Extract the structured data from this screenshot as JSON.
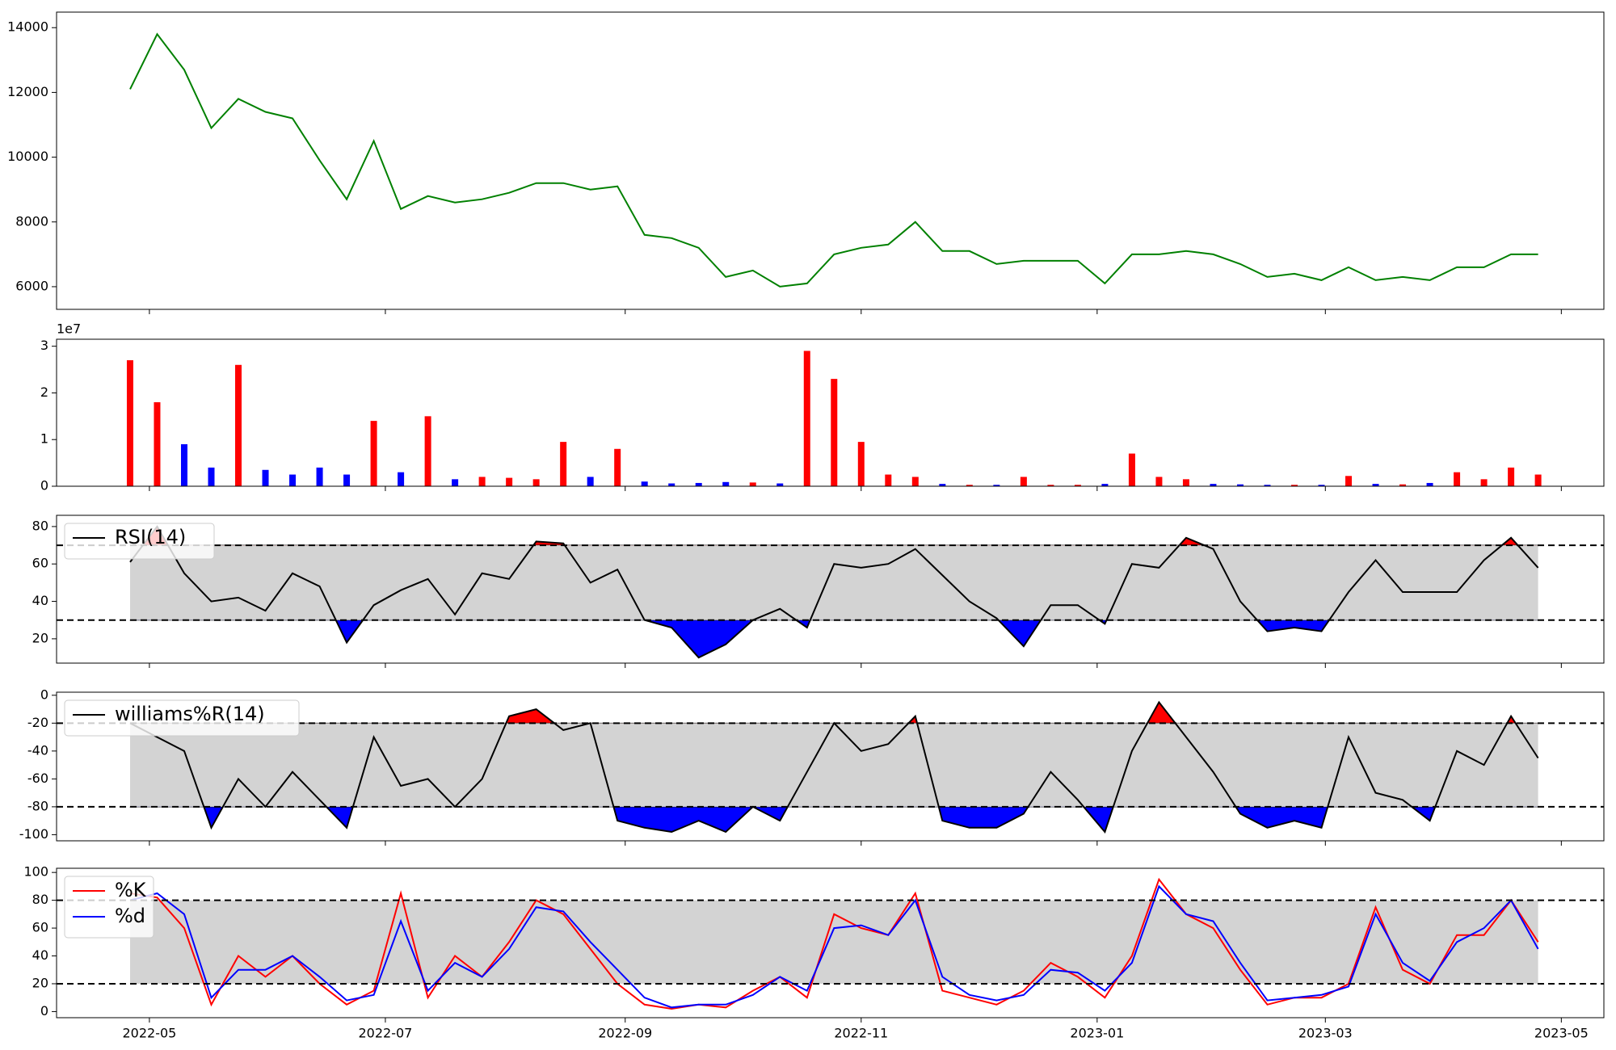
{
  "chart_data": [
    {
      "type": "line",
      "xlim": [
        "2022-04-07",
        "2023-05-12"
      ],
      "x": [
        "2022-04-26",
        "2022-05-03",
        "2022-05-10",
        "2022-05-17",
        "2022-05-24",
        "2022-05-31",
        "2022-06-07",
        "2022-06-14",
        "2022-06-21",
        "2022-06-28",
        "2022-07-05",
        "2022-07-12",
        "2022-07-19",
        "2022-07-26",
        "2022-08-02",
        "2022-08-09",
        "2022-08-16",
        "2022-08-23",
        "2022-08-30",
        "2022-09-06",
        "2022-09-13",
        "2022-09-20",
        "2022-09-27",
        "2022-10-04",
        "2022-10-11",
        "2022-10-18",
        "2022-10-25",
        "2022-11-01",
        "2022-11-08",
        "2022-11-15",
        "2022-11-22",
        "2022-11-29",
        "2022-12-06",
        "2022-12-13",
        "2022-12-20",
        "2022-12-27",
        "2023-01-03",
        "2023-01-10",
        "2023-01-17",
        "2023-01-24",
        "2023-01-31",
        "2023-02-07",
        "2023-02-14",
        "2023-02-21",
        "2023-02-28",
        "2023-03-07",
        "2023-03-14",
        "2023-03-21",
        "2023-03-28",
        "2023-04-04",
        "2023-04-11",
        "2023-04-18",
        "2023-04-25"
      ],
      "series": [
        {
          "color": "green",
          "values": [
            12100,
            13800,
            12700,
            10900,
            11800,
            11400,
            11200,
            9900,
            8700,
            10500,
            8400,
            8800,
            8600,
            8700,
            8900,
            9200,
            9200,
            9000,
            9100,
            7600,
            7500,
            7200,
            6300,
            6500,
            6000,
            6100,
            7000,
            7200,
            7300,
            8000,
            7100,
            7100,
            6700,
            6800,
            6800,
            6800,
            6100,
            7000,
            7000,
            7100,
            7000,
            6700,
            6300,
            6400,
            6200,
            6600,
            6200,
            6300,
            6200,
            6600,
            6600,
            7000,
            7000
          ]
        }
      ],
      "ylim": [
        5300,
        14480
      ],
      "yticks": [
        6000,
        8000,
        10000,
        12000,
        14000
      ]
    },
    {
      "type": "bar",
      "xlim": [
        "2022-04-07",
        "2023-05-12"
      ],
      "up_color": "red",
      "down_color": "blue",
      "x": [
        "2022-04-26",
        "2022-05-03",
        "2022-05-10",
        "2022-05-17",
        "2022-05-24",
        "2022-05-31",
        "2022-06-07",
        "2022-06-14",
        "2022-06-21",
        "2022-06-28",
        "2022-07-05",
        "2022-07-12",
        "2022-07-19",
        "2022-07-26",
        "2022-08-02",
        "2022-08-09",
        "2022-08-16",
        "2022-08-23",
        "2022-08-30",
        "2022-09-06",
        "2022-09-13",
        "2022-09-20",
        "2022-09-27",
        "2022-10-04",
        "2022-10-11",
        "2022-10-18",
        "2022-10-25",
        "2022-11-01",
        "2022-11-08",
        "2022-11-15",
        "2022-11-22",
        "2022-11-29",
        "2022-12-06",
        "2022-12-13",
        "2022-12-20",
        "2022-12-27",
        "2023-01-03",
        "2023-01-10",
        "2023-01-17",
        "2023-01-24",
        "2023-01-31",
        "2023-02-07",
        "2023-02-14",
        "2023-02-21",
        "2023-02-28",
        "2023-03-07",
        "2023-03-14",
        "2023-03-21",
        "2023-03-28",
        "2023-04-04",
        "2023-04-11",
        "2023-04-18",
        "2023-04-25"
      ],
      "values": [
        27000000,
        18000000,
        9000000,
        4000000,
        26000000,
        3500000,
        2500000,
        4000000,
        2500000,
        14000000,
        3000000,
        15000000,
        1500000,
        2000000,
        1800000,
        1500000,
        9500000,
        2000000,
        8000000,
        1000000,
        600000,
        700000,
        900000,
        800000,
        600000,
        29000000,
        23000000,
        9500000,
        2500000,
        2000000,
        500000,
        300000,
        300000,
        2000000,
        300000,
        300000,
        500000,
        7000000,
        2000000,
        1500000,
        500000,
        400000,
        300000,
        300000,
        300000,
        2200000,
        500000,
        400000,
        700000,
        3000000,
        1500000,
        4000000,
        2500000
      ],
      "ylim": [
        0,
        31500000
      ],
      "y_offset_label": "1e7",
      "yticks": [
        0,
        {
          "value": 10000000,
          "label": "1"
        },
        {
          "value": 20000000,
          "label": "2"
        },
        {
          "value": 30000000,
          "label": "3"
        }
      ]
    },
    {
      "type": "line",
      "xlim": [
        "2022-04-07",
        "2023-05-12"
      ],
      "thresholds": [
        30,
        70
      ],
      "band_color": "#d3d3d3",
      "upper_fill": "red",
      "lower_fill": "blue",
      "legend": "upper left",
      "x": [
        "2022-04-26",
        "2022-05-03",
        "2022-05-10",
        "2022-05-17",
        "2022-05-24",
        "2022-05-31",
        "2022-06-07",
        "2022-06-14",
        "2022-06-21",
        "2022-06-28",
        "2022-07-05",
        "2022-07-12",
        "2022-07-19",
        "2022-07-26",
        "2022-08-02",
        "2022-08-09",
        "2022-08-16",
        "2022-08-23",
        "2022-08-30",
        "2022-09-06",
        "2022-09-13",
        "2022-09-20",
        "2022-09-27",
        "2022-10-04",
        "2022-10-11",
        "2022-10-18",
        "2022-10-25",
        "2022-11-01",
        "2022-11-08",
        "2022-11-15",
        "2022-11-22",
        "2022-11-29",
        "2022-12-06",
        "2022-12-13",
        "2022-12-20",
        "2022-12-27",
        "2023-01-03",
        "2023-01-10",
        "2023-01-17",
        "2023-01-24",
        "2023-01-31",
        "2023-02-07",
        "2023-02-14",
        "2023-02-21",
        "2023-02-28",
        "2023-03-07",
        "2023-03-14",
        "2023-03-21",
        "2023-03-28",
        "2023-04-04",
        "2023-04-11",
        "2023-04-18",
        "2023-04-25"
      ],
      "series": [
        {
          "name": "RSI(14)",
          "color": "black",
          "values": [
            61,
            80,
            55,
            40,
            42,
            35,
            55,
            48,
            18,
            38,
            46,
            52,
            33,
            55,
            52,
            72,
            71,
            50,
            57,
            30,
            26,
            10,
            17,
            30,
            36,
            26,
            60,
            58,
            60,
            68,
            54,
            40,
            31,
            16,
            38,
            38,
            28,
            60,
            58,
            74,
            68,
            40,
            24,
            26,
            24,
            45,
            62,
            45,
            45,
            45,
            62,
            74,
            58
          ]
        }
      ],
      "ylim": [
        7,
        86
      ],
      "yticks": [
        20,
        40,
        60,
        80
      ]
    },
    {
      "type": "line",
      "xlim": [
        "2022-04-07",
        "2023-05-12"
      ],
      "thresholds": [
        -80,
        -20
      ],
      "band_color": "#d3d3d3",
      "upper_fill": "red",
      "lower_fill": "blue",
      "legend": "upper left",
      "x": [
        "2022-04-26",
        "2022-05-03",
        "2022-05-10",
        "2022-05-17",
        "2022-05-24",
        "2022-05-31",
        "2022-06-07",
        "2022-06-14",
        "2022-06-21",
        "2022-06-28",
        "2022-07-05",
        "2022-07-12",
        "2022-07-19",
        "2022-07-26",
        "2022-08-02",
        "2022-08-09",
        "2022-08-16",
        "2022-08-23",
        "2022-08-30",
        "2022-09-06",
        "2022-09-13",
        "2022-09-20",
        "2022-09-27",
        "2022-10-04",
        "2022-10-11",
        "2022-10-18",
        "2022-10-25",
        "2022-11-01",
        "2022-11-08",
        "2022-11-15",
        "2022-11-22",
        "2022-11-29",
        "2022-12-06",
        "2022-12-13",
        "2022-12-20",
        "2022-12-27",
        "2023-01-03",
        "2023-01-10",
        "2023-01-17",
        "2023-01-24",
        "2023-01-31",
        "2023-02-07",
        "2023-02-14",
        "2023-02-21",
        "2023-02-28",
        "2023-03-07",
        "2023-03-14",
        "2023-03-21",
        "2023-03-28",
        "2023-04-04",
        "2023-04-11",
        "2023-04-18",
        "2023-04-25"
      ],
      "series": [
        {
          "name": "williams%R(14)",
          "color": "black",
          "values": [
            -20,
            -30,
            -40,
            -95,
            -60,
            -80,
            -55,
            -75,
            -95,
            -30,
            -65,
            -60,
            -80,
            -60,
            -15,
            -10,
            -25,
            -20,
            -90,
            -95,
            -98,
            -90,
            -98,
            -80,
            -90,
            -55,
            -20,
            -40,
            -35,
            -15,
            -90,
            -95,
            -95,
            -85,
            -55,
            -75,
            -98,
            -40,
            -5,
            -30,
            -55,
            -85,
            -95,
            -90,
            -95,
            -30,
            -70,
            -75,
            -90,
            -40,
            -50,
            -15,
            -45
          ]
        }
      ],
      "ylim": [
        -104.4,
        2.2
      ],
      "yticks": [
        -100,
        -80,
        -60,
        -40,
        -20,
        0
      ]
    },
    {
      "type": "line",
      "xlim": [
        "2022-04-07",
        "2023-05-12"
      ],
      "thresholds": [
        20,
        80
      ],
      "band_color": "#d3d3d3",
      "legend": "upper left",
      "x": [
        "2022-04-26",
        "2022-05-03",
        "2022-05-10",
        "2022-05-17",
        "2022-05-24",
        "2022-05-31",
        "2022-06-07",
        "2022-06-14",
        "2022-06-21",
        "2022-06-28",
        "2022-07-05",
        "2022-07-12",
        "2022-07-19",
        "2022-07-26",
        "2022-08-02",
        "2022-08-09",
        "2022-08-16",
        "2022-08-23",
        "2022-08-30",
        "2022-09-06",
        "2022-09-13",
        "2022-09-20",
        "2022-09-27",
        "2022-10-04",
        "2022-10-11",
        "2022-10-18",
        "2022-10-25",
        "2022-11-01",
        "2022-11-08",
        "2022-11-15",
        "2022-11-22",
        "2022-11-29",
        "2022-12-06",
        "2022-12-13",
        "2022-12-20",
        "2022-12-27",
        "2023-01-03",
        "2023-01-10",
        "2023-01-17",
        "2023-01-24",
        "2023-01-31",
        "2023-02-07",
        "2023-02-14",
        "2023-02-21",
        "2023-02-28",
        "2023-03-07",
        "2023-03-14",
        "2023-03-21",
        "2023-03-28",
        "2023-04-04",
        "2023-04-11",
        "2023-04-18",
        "2023-04-25"
      ],
      "series": [
        {
          "name": "%K",
          "color": "red",
          "values": [
            85,
            82,
            60,
            5,
            40,
            25,
            40,
            20,
            5,
            15,
            85,
            10,
            40,
            25,
            50,
            80,
            70,
            45,
            20,
            5,
            2,
            5,
            3,
            15,
            25,
            10,
            70,
            60,
            55,
            85,
            15,
            10,
            5,
            15,
            35,
            25,
            10,
            40,
            95,
            70,
            60,
            30,
            5,
            10,
            10,
            20,
            75,
            30,
            20,
            55,
            55,
            80,
            50
          ]
        },
        {
          "name": "%d",
          "color": "blue",
          "values": [
            80,
            85,
            70,
            10,
            30,
            30,
            40,
            25,
            8,
            12,
            65,
            15,
            35,
            25,
            45,
            75,
            72,
            50,
            30,
            10,
            3,
            5,
            5,
            12,
            25,
            15,
            60,
            62,
            55,
            80,
            25,
            12,
            8,
            12,
            30,
            28,
            15,
            35,
            90,
            70,
            65,
            35,
            8,
            10,
            12,
            18,
            70,
            35,
            22,
            50,
            60,
            80,
            45
          ]
        }
      ],
      "ylim": [
        -4.4,
        103
      ],
      "yticks": [
        0,
        20,
        40,
        60,
        80,
        100
      ],
      "xticks": [
        {
          "value": "2022-05-01",
          "label": "2022-05"
        },
        {
          "value": "2022-07-01",
          "label": "2022-07"
        },
        {
          "value": "2022-09-01",
          "label": "2022-09"
        },
        {
          "value": "2022-11-01",
          "label": "2022-11"
        },
        {
          "value": "2023-01-01",
          "label": "2023-01"
        },
        {
          "value": "2023-03-01",
          "label": "2023-03"
        },
        {
          "value": "2023-05-01",
          "label": "2023-05"
        }
      ]
    }
  ]
}
